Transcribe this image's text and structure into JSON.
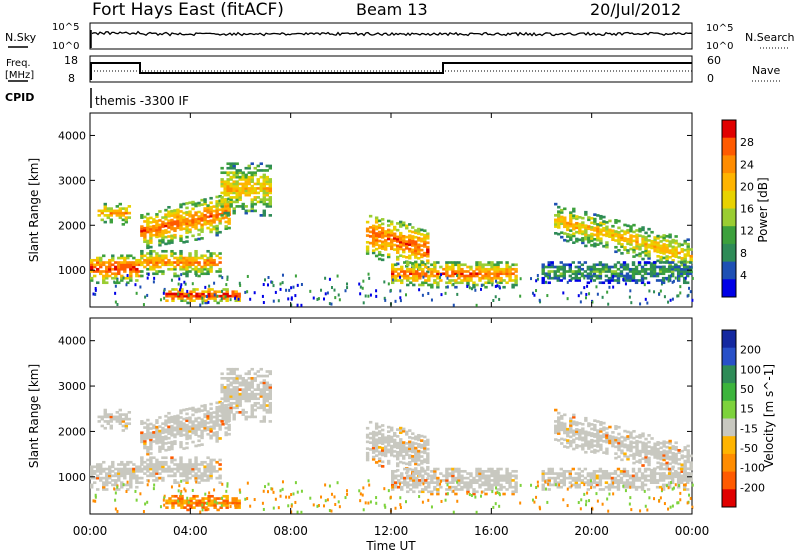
{
  "header": {
    "title": "Fort Hays East (fitACF)",
    "beam": "Beam 13",
    "date": "20/Jul/2012"
  },
  "strips": {
    "nsky_label": "N.Sky",
    "nsearch_label": "N.Search",
    "nsky_ticks": [
      "10^5",
      "10^0"
    ],
    "nsky_right_ticks": [
      "10^5",
      "10^0"
    ],
    "freq_label": "Freq.",
    "freq_unit": "[MHz]",
    "freq_ticks": [
      "18",
      "8"
    ],
    "nave_label": "Nave",
    "nave_ticks": [
      "60",
      "0"
    ],
    "cpid_label": "CPID",
    "cpid_text": "themis -3300 IF"
  },
  "chart_data": [
    {
      "type": "heatmap",
      "name_shown": "Power",
      "colorbar_label": "Power [dB]",
      "colorbar_ticks": [
        "28",
        "24",
        "20",
        "16",
        "12",
        "8",
        "4"
      ],
      "colorbar_colors": [
        "#e00000",
        "#ff5a00",
        "#ff8c00",
        "#ffb400",
        "#e8d200",
        "#9acd32",
        "#3ca03c",
        "#2e8b57",
        "#1e50b4",
        "#0000e6"
      ],
      "ylabel": "Slant Range [km]",
      "yticks": [
        1000,
        2000,
        3000,
        4000
      ],
      "ylim": [
        180,
        4500
      ],
      "xlim": [
        0,
        24
      ],
      "bands": [
        {
          "t0": 0.0,
          "t1": 2.0,
          "r0": 700,
          "r1": 1350,
          "level": 0.85
        },
        {
          "t0": 0.3,
          "t1": 1.6,
          "r0": 2000,
          "r1": 2500,
          "level": 0.65
        },
        {
          "t0": 2.0,
          "t1": 5.2,
          "r0": 850,
          "r1": 1450,
          "level": 0.7
        },
        {
          "t0": 2.0,
          "t1": 5.5,
          "r0": 1400,
          "r1": 2300,
          "level": 0.75
        },
        {
          "t0": 5.2,
          "t1": 7.2,
          "r0": 2200,
          "r1": 3400,
          "level": 0.6
        },
        {
          "t0": 3.0,
          "t1": 6.0,
          "r0": 250,
          "r1": 600,
          "level": 0.9
        },
        {
          "t0": 11.0,
          "t1": 13.5,
          "r0": 1300,
          "r1": 2300,
          "level": 0.8
        },
        {
          "t0": 12.0,
          "t1": 17.0,
          "r0": 600,
          "r1": 1200,
          "level": 0.75
        },
        {
          "t0": 18.5,
          "t1": 24.0,
          "r0": 1700,
          "r1": 2500,
          "level": 0.6
        },
        {
          "t0": 18.0,
          "t1": 24.0,
          "r0": 700,
          "r1": 1200,
          "level": 0.3
        }
      ]
    },
    {
      "type": "heatmap",
      "name_shown": "Velocity",
      "colorbar_label": "Velocity [m s^-1]",
      "colorbar_ticks": [
        "200",
        "100",
        "50",
        "15",
        "-15",
        "-50",
        "-100",
        "-200"
      ],
      "colorbar_colors": [
        "#1428a0",
        "#2850c8",
        "#2e8b57",
        "#3cb43c",
        "#7dd23c",
        "#c8c8c0",
        "#ffb400",
        "#ff8c00",
        "#ff5a00",
        "#e00000"
      ],
      "ylabel": "Slant Range [km]",
      "yticks": [
        1000,
        2000,
        3000,
        4000
      ],
      "ylim": [
        180,
        4500
      ],
      "xlim": [
        0,
        24
      ],
      "xticks": [
        "00:00",
        "04:00",
        "08:00",
        "12:00",
        "16:00",
        "20:00",
        "00:00"
      ],
      "xlabel": "Time UT"
    }
  ]
}
